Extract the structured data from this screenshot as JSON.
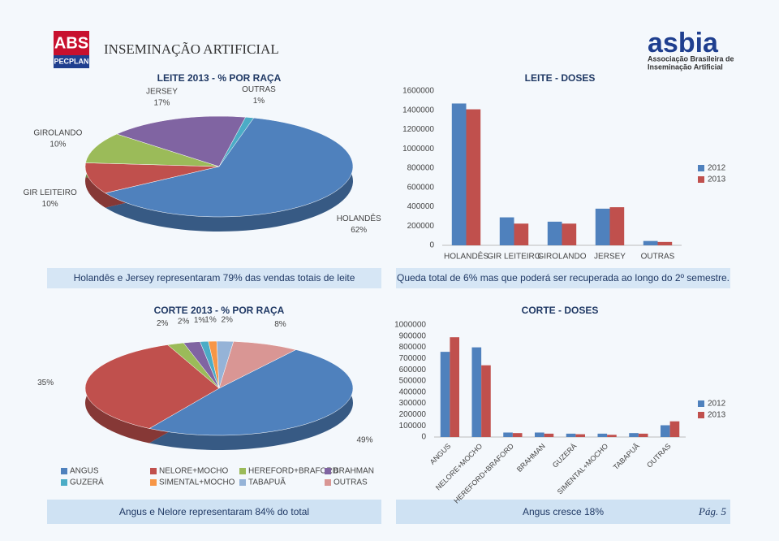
{
  "header": {
    "logo_left": "ABS",
    "logo_left_sub": "PECPLAN",
    "title": "INSEMINAÇÃO ARTIFICIAL",
    "logo_right": "asbia",
    "logo_right_sub_1": "Associação Brasileira de",
    "logo_right_sub_2": "Inseminação Artificial"
  },
  "chart_data": [
    {
      "type": "pie",
      "title": "LEITE 2013 - % POR RAÇA",
      "categories": [
        "HOLANDÊS",
        "GIR LEITEIRO",
        "GIROLANDO",
        "JERSEY",
        "OUTRAS"
      ],
      "values": [
        62,
        10,
        10,
        17,
        1
      ],
      "value_labels": [
        "62%",
        "10%",
        "10%",
        "17%",
        "1%"
      ],
      "colors": [
        "#4f81bd",
        "#c0504d",
        "#9bbb59",
        "#8064a2",
        "#4bacc6"
      ]
    },
    {
      "type": "bar",
      "title": "LEITE - DOSES",
      "categories": [
        "HOLANDÊS",
        "GIR LEITEIRO",
        "GIROLANDO",
        "JERSEY",
        "OUTRAS"
      ],
      "series": [
        {
          "name": "2012",
          "color": "#4f81bd",
          "values": [
            1470000,
            290000,
            245000,
            380000,
            45000
          ]
        },
        {
          "name": "2013",
          "color": "#c0504d",
          "values": [
            1410000,
            225000,
            225000,
            395000,
            35000
          ]
        }
      ],
      "ylim": [
        0,
        1600000
      ],
      "yticks": [
        0,
        200000,
        400000,
        600000,
        800000,
        1000000,
        1200000,
        1400000,
        1600000
      ]
    },
    {
      "type": "pie",
      "title": "CORTE 2013 - % POR RAÇA",
      "categories": [
        "ANGUS",
        "NELORE+MOCHO",
        "HEREFORD+BRAFORD",
        "BRAHMAN",
        "GUZERÁ",
        "SIMENTAL+MOCHO",
        "TABAPUÃ",
        "OUTRAS"
      ],
      "values": [
        49,
        35,
        2,
        2,
        1,
        1,
        2,
        8
      ],
      "value_labels": [
        "49%",
        "35%",
        "2%",
        "2%",
        "1%",
        "1%",
        "2%",
        "8%"
      ],
      "colors": [
        "#4f81bd",
        "#c0504d",
        "#9bbb59",
        "#8064a2",
        "#4bacc6",
        "#f79646",
        "#95b3d7",
        "#d99694"
      ],
      "legend": "bottom"
    },
    {
      "type": "bar",
      "title": "CORTE - DOSES",
      "categories": [
        "ANGUS",
        "NELORE+MOCHO",
        "HEREFORD+BRAFORD",
        "BRAHMAN",
        "GUZERÁ",
        "SIMENTAL+MOCHO",
        "TABAPUÃ",
        "OUTRAS"
      ],
      "series": [
        {
          "name": "2012",
          "color": "#4f81bd",
          "values": [
            760000,
            800000,
            40000,
            40000,
            30000,
            30000,
            35000,
            105000
          ]
        },
        {
          "name": "2013",
          "color": "#c0504d",
          "values": [
            890000,
            640000,
            35000,
            30000,
            25000,
            20000,
            30000,
            140000
          ]
        }
      ],
      "ylim": [
        0,
        1000000
      ],
      "yticks": [
        0,
        100000,
        200000,
        300000,
        400000,
        500000,
        600000,
        700000,
        800000,
        900000,
        1000000
      ],
      "rotate_labels": true
    }
  ],
  "captions": [
    "Holandês e Jersey representaram 79% das vendas totais de leite",
    "Queda total de 6% mas que poderá ser recuperada ao longo do 2º semestre.",
    "Angus e Nelore representaram 84% do total",
    "Angus cresce 18%"
  ],
  "page": "Pág. 5"
}
